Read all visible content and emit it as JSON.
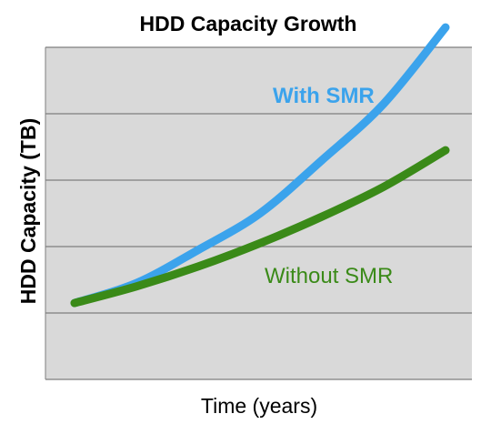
{
  "chart_data": {
    "type": "line",
    "title": "HDD Capacity Growth",
    "xlabel": "Time (years)",
    "ylabel": "HDD Capacity  (TB)",
    "xlim": [
      0,
      10
    ],
    "ylim": [
      0,
      10
    ],
    "grid": true,
    "colors": {
      "plot_background": "#d9d9d9",
      "gridline": "#7f7f7f",
      "axis_line": "#7f7f7f"
    },
    "series": [
      {
        "name": "With SMR",
        "color": "#3ba3ec",
        "x": [
          0,
          1.5,
          3,
          4.5,
          6,
          7.5,
          9
        ],
        "values": [
          2.3,
          2.9,
          3.9,
          5.0,
          6.6,
          8.3,
          10.6
        ]
      },
      {
        "name": "Without SMR",
        "color": "#3a8a18",
        "x": [
          0,
          1.5,
          3,
          4.5,
          6,
          7.5,
          9
        ],
        "values": [
          2.3,
          2.8,
          3.4,
          4.1,
          4.9,
          5.8,
          6.9
        ]
      }
    ]
  }
}
